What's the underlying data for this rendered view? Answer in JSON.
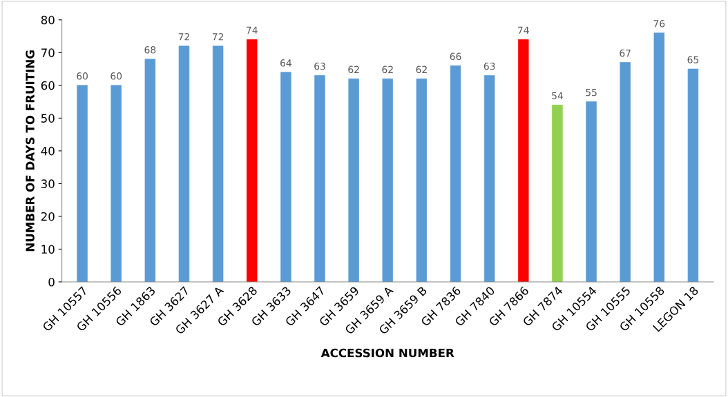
{
  "chart_data": {
    "type": "bar",
    "xlabel": "ACCESSION NUMBER",
    "ylabel": "NUMBER OF DAYS TO FRUITING",
    "categories": [
      "GH 10557",
      "GH 10556",
      "GH 1863",
      "GH 3627",
      "GH 3627 A",
      "GH 3628",
      "GH 3633",
      "GH 3647",
      "GH 3659",
      "GH 3659 A",
      "GH 3659 B",
      "GH 7836",
      "GH 7840",
      "GH 7866",
      "GH 7874",
      "GH 10554",
      "GH 10555",
      "GH 10558",
      "LEGON 18"
    ],
    "values": [
      60,
      60,
      68,
      72,
      72,
      74,
      64,
      63,
      62,
      62,
      62,
      66,
      63,
      74,
      54,
      55,
      67,
      76,
      65
    ],
    "colors": [
      "#5b9bd5",
      "#5b9bd5",
      "#5b9bd5",
      "#5b9bd5",
      "#5b9bd5",
      "#ff0000",
      "#5b9bd5",
      "#5b9bd5",
      "#5b9bd5",
      "#5b9bd5",
      "#5b9bd5",
      "#5b9bd5",
      "#5b9bd5",
      "#ff0000",
      "#92d050",
      "#5b9bd5",
      "#5b9bd5",
      "#5b9bd5",
      "#5b9bd5"
    ],
    "ylim": [
      0,
      80
    ],
    "yticks": [
      0,
      10,
      20,
      30,
      40,
      50,
      60,
      70,
      80
    ],
    "grid": false,
    "legend": false,
    "data_labels": true
  }
}
